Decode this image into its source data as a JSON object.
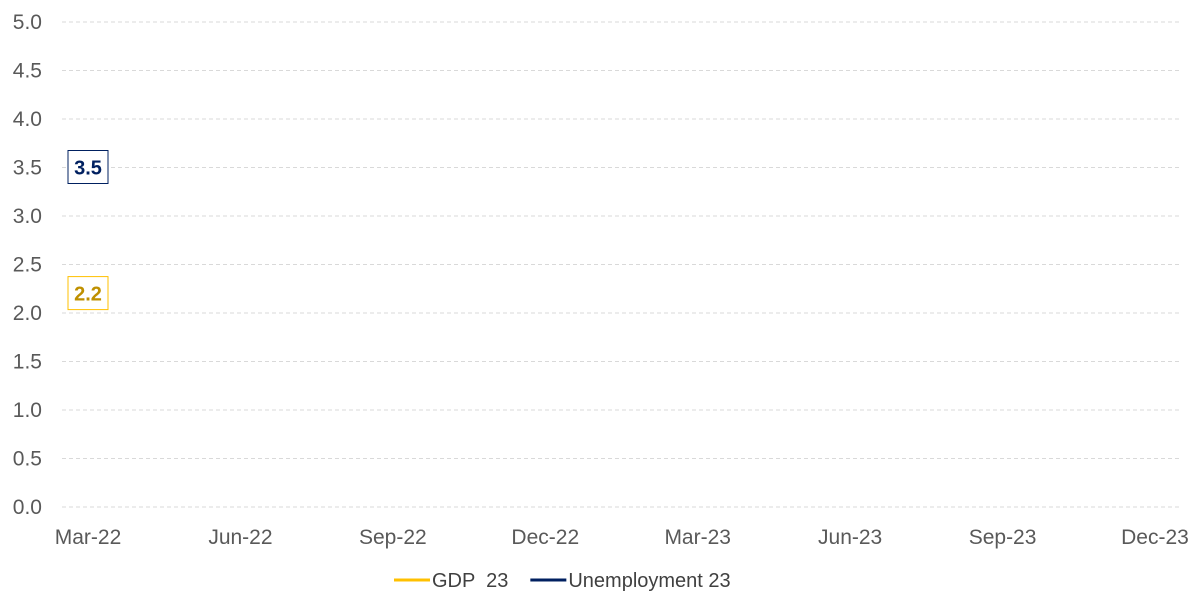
{
  "chart_data": {
    "type": "line",
    "categories": [
      "Mar-22",
      "Jun-22",
      "Sep-22",
      "Dec-22",
      "Mar-23",
      "Jun-23",
      "Sep-23",
      "Dec-23"
    ],
    "y_ticks": [
      "0.0",
      "0.5",
      "1.0",
      "1.5",
      "2.0",
      "2.5",
      "3.0",
      "3.5",
      "4.0",
      "4.5",
      "5.0"
    ],
    "ylim": [
      0,
      5
    ],
    "grid": true,
    "legend_position": "bottom",
    "series": [
      {
        "name": "GDP  23",
        "color": "#FFC000",
        "label_color": "#BF9000",
        "points": [
          {
            "x": "Mar-22",
            "y": 2.2,
            "label": "2.2"
          }
        ]
      },
      {
        "name": "Unemployment 23",
        "color": "#002060",
        "label_color": "#002060",
        "points": [
          {
            "x": "Mar-22",
            "y": 3.5,
            "label": "3.5"
          }
        ]
      }
    ]
  }
}
